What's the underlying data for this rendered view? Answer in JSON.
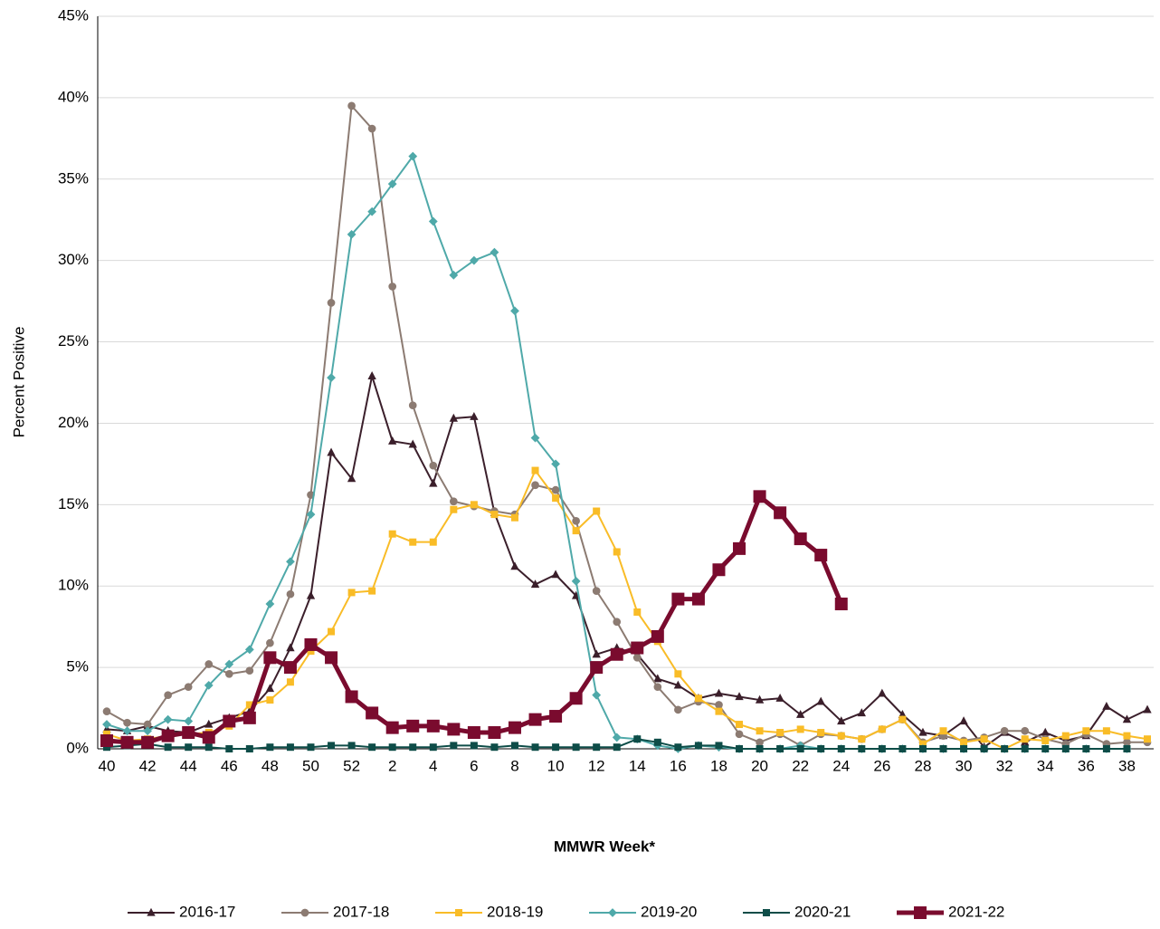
{
  "chart_data": {
    "type": "line",
    "y_label": "Percent Positive",
    "x_label": "MMWR Week*",
    "categories": [
      "40",
      null,
      "42",
      null,
      "44",
      null,
      "46",
      null,
      "48",
      null,
      "50",
      null,
      "52",
      null,
      "2",
      null,
      "4",
      null,
      "6",
      null,
      "8",
      null,
      "10",
      null,
      "12",
      null,
      "14",
      null,
      "16",
      null,
      "18",
      null,
      "20",
      null,
      "22",
      null,
      "24",
      null,
      "26",
      null,
      "28",
      null,
      "30",
      null,
      "32",
      null,
      "34",
      null,
      "36",
      null,
      "38",
      null
    ],
    "ylim": [
      0,
      45
    ],
    "yticks": [
      {
        "value": 0,
        "label": "0%"
      },
      {
        "value": 5,
        "label": "5%"
      },
      {
        "value": 10,
        "label": "10%"
      },
      {
        "value": 15,
        "label": "15%"
      },
      {
        "value": 20,
        "label": "20%"
      },
      {
        "value": 25,
        "label": "25%"
      },
      {
        "value": 30,
        "label": "30%"
      },
      {
        "value": 35,
        "label": "35%"
      },
      {
        "value": 40,
        "label": "40%"
      },
      {
        "value": 45,
        "label": "45%"
      }
    ],
    "grid": true,
    "legend": "bottom",
    "series": [
      {
        "name": "2016-17",
        "color": "#3b1f2b",
        "marker": "triangle",
        "line_width": 2,
        "values": [
          1.2,
          1.1,
          1.4,
          1.1,
          1.0,
          1.5,
          1.9,
          2.3,
          3.7,
          6.2,
          9.4,
          18.2,
          16.6,
          22.9,
          18.9,
          18.7,
          16.3,
          20.3,
          20.4,
          14.5,
          11.2,
          10.1,
          10.7,
          9.4,
          5.8,
          6.2,
          5.8,
          4.3,
          3.9,
          3.1,
          3.4,
          3.2,
          3.0,
          3.1,
          2.1,
          2.9,
          1.7,
          2.2,
          3.4,
          2.1,
          1.0,
          0.8,
          1.7,
          0.1,
          1.0,
          0.4,
          1.0,
          0.5,
          0.8,
          2.6,
          1.8,
          2.4
        ]
      },
      {
        "name": "2017-18",
        "color": "#8c7b72",
        "marker": "circle",
        "line_width": 2,
        "values": [
          2.3,
          1.6,
          1.5,
          3.3,
          3.8,
          5.2,
          4.6,
          4.8,
          6.5,
          9.5,
          15.6,
          27.4,
          39.5,
          38.1,
          28.4,
          21.1,
          17.4,
          15.2,
          14.9,
          14.6,
          14.4,
          16.2,
          15.9,
          14.0,
          9.7,
          7.8,
          5.6,
          3.8,
          2.4,
          2.9,
          2.7,
          0.9,
          0.4,
          0.9,
          0.2,
          0.9,
          0.8,
          0.6,
          1.2,
          1.8,
          0.4,
          0.8,
          0.5,
          0.7,
          1.1,
          1.1,
          0.6,
          0.3,
          0.9,
          0.3,
          0.4,
          0.4
        ]
      },
      {
        "name": "2018-19",
        "color": "#f9bc27",
        "marker": "square",
        "line_width": 2,
        "values": [
          0.9,
          0.5,
          0.6,
          0.8,
          0.9,
          1.0,
          1.4,
          2.7,
          3.0,
          4.1,
          6.0,
          7.2,
          9.6,
          9.7,
          13.2,
          12.7,
          12.7,
          14.7,
          15.0,
          14.4,
          14.2,
          17.1,
          15.4,
          13.4,
          14.6,
          12.1,
          8.4,
          6.6,
          4.6,
          3.1,
          2.3,
          1.5,
          1.1,
          1.0,
          1.2,
          1.0,
          0.8,
          0.6,
          1.2,
          1.8,
          0.3,
          1.1,
          0.4,
          0.6,
          0.0,
          0.6,
          0.5,
          0.8,
          1.1,
          1.1,
          0.8,
          0.6
        ]
      },
      {
        "name": "2019-20",
        "color": "#4fa9a9",
        "marker": "diamond",
        "line_width": 2,
        "values": [
          1.5,
          1.1,
          1.1,
          1.8,
          1.7,
          3.9,
          5.2,
          6.1,
          8.9,
          11.5,
          14.4,
          22.8,
          31.6,
          33.0,
          34.7,
          36.4,
          32.4,
          29.1,
          30.0,
          30.5,
          26.9,
          19.1,
          17.5,
          10.3,
          3.3,
          0.7,
          0.6,
          0.2,
          0.0,
          0.2,
          0.1,
          0,
          0,
          0,
          0.2,
          0,
          0,
          0,
          0,
          0,
          0,
          0,
          0,
          0,
          0,
          0,
          0,
          0,
          0,
          0,
          0,
          null
        ]
      },
      {
        "name": "2020-21",
        "color": "#0e4d48",
        "marker": "square",
        "line_width": 2,
        "values": [
          0.1,
          0.2,
          0.3,
          0.1,
          0.1,
          0.1,
          0.0,
          0.0,
          0.1,
          0.1,
          0.1,
          0.2,
          0.2,
          0.1,
          0.1,
          0.1,
          0.1,
          0.2,
          0.2,
          0.1,
          0.2,
          0.1,
          0.1,
          0.1,
          0.1,
          0.1,
          0.6,
          0.4,
          0.1,
          0.2,
          0.2,
          0,
          0,
          0,
          0,
          0,
          0,
          0,
          0,
          0,
          0,
          0,
          0,
          0,
          0,
          0,
          0,
          0,
          0,
          0,
          0,
          null
        ]
      },
      {
        "name": "2021-22",
        "color": "#7a0b2e",
        "marker": "square",
        "line_width": 5,
        "values": [
          0.5,
          0.4,
          0.4,
          0.8,
          1.0,
          0.7,
          1.7,
          1.9,
          5.6,
          5.0,
          6.4,
          5.6,
          3.2,
          2.2,
          1.3,
          1.4,
          1.4,
          1.2,
          1.0,
          1.0,
          1.3,
          1.8,
          2.0,
          3.1,
          5.0,
          5.8,
          6.2,
          6.9,
          9.2,
          9.2,
          11.0,
          12.3,
          15.5,
          14.5,
          12.9,
          11.9,
          8.9,
          null,
          null,
          null,
          null,
          null,
          null,
          null,
          null,
          null,
          null,
          null,
          null,
          null,
          null,
          null
        ]
      }
    ]
  }
}
